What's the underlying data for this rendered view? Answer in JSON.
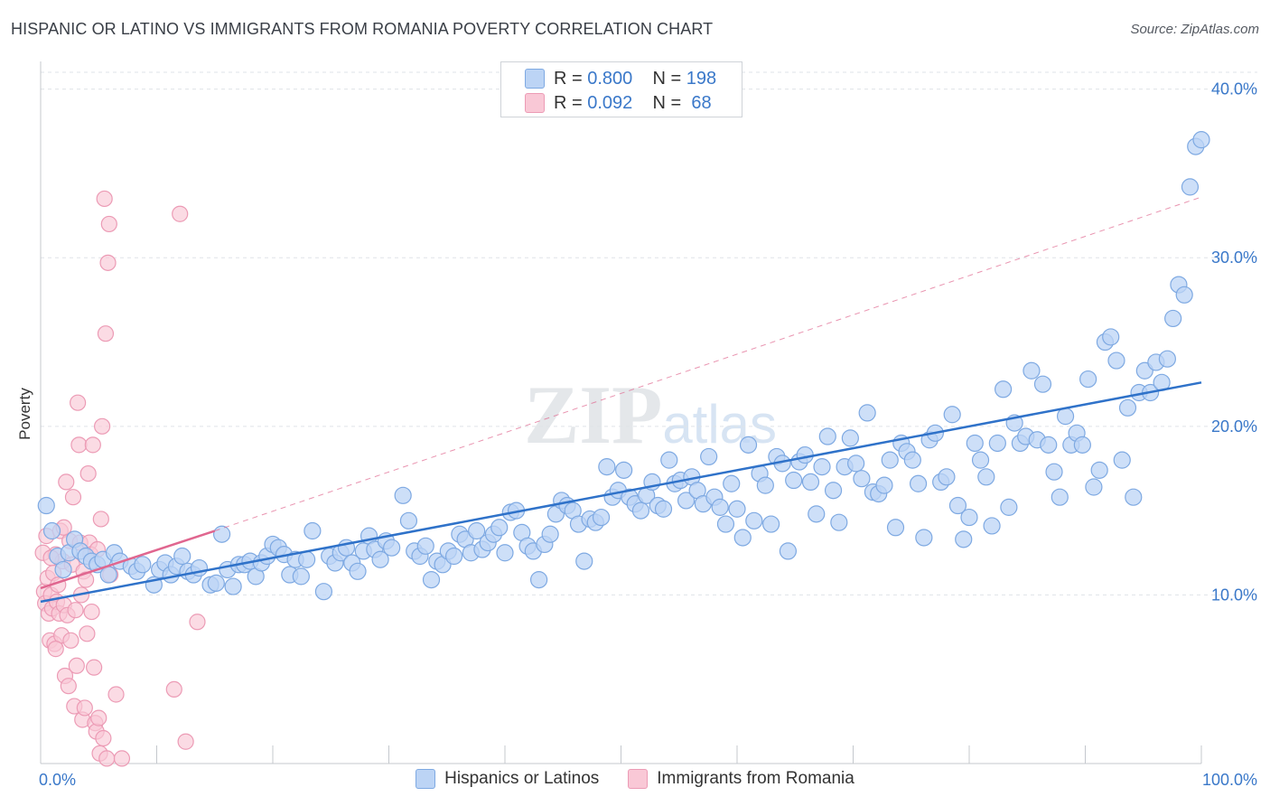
{
  "title": "HISPANIC OR LATINO VS IMMIGRANTS FROM ROMANIA POVERTY CORRELATION CHART",
  "source": "Source: ZipAtlas.com",
  "watermark": "ZIPatlas",
  "legend_box": {
    "rows": [
      {
        "r_label": "R =",
        "r_value": "0.800",
        "n_label": "N =",
        "n_value": "198"
      },
      {
        "r_label": "R =",
        "r_value": "0.092",
        "n_label": "N =",
        "n_value": "68"
      }
    ]
  },
  "colors": {
    "blue_fill": "#bcd4f5",
    "blue_stroke": "#7ea9e2",
    "blue_line": "#2f72c9",
    "pink_fill": "#f9c8d6",
    "pink_stroke": "#ec9bb5",
    "pink_line": "#e0668f",
    "tick_label": "#3a78c9",
    "grid": "#dfe3e8"
  },
  "chart_data": {
    "type": "scatter",
    "title": "HISPANIC OR LATINO VS IMMIGRANTS FROM ROMANIA POVERTY CORRELATION CHART",
    "xlabel": "",
    "ylabel": "Poverty",
    "xlim": [
      0,
      100
    ],
    "ylim": [
      0,
      41
    ],
    "x_tick_labels": [
      "0.0%",
      "100.0%"
    ],
    "y_ticks": [
      10,
      20,
      30,
      40
    ],
    "y_tick_labels": [
      "10.0%",
      "20.0%",
      "30.0%",
      "40.0%"
    ],
    "grid": true,
    "legend_position": "bottom-center",
    "series": [
      {
        "name": "Hispanics or Latinos",
        "color": "blue",
        "trend": {
          "x": [
            0,
            100
          ],
          "y": [
            9.6,
            22.6
          ]
        },
        "points": [
          [
            0.5,
            15.3
          ],
          [
            1,
            13.8
          ],
          [
            1.5,
            12.3
          ],
          [
            2,
            11.5
          ],
          [
            2.5,
            12.5
          ],
          [
            3,
            13.3
          ],
          [
            3.5,
            12.6
          ],
          [
            4,
            12.3
          ],
          [
            4.5,
            12.0
          ],
          [
            5,
            11.8
          ],
          [
            5.5,
            12.1
          ],
          [
            6,
            11.2
          ],
          [
            6.5,
            12.5
          ],
          [
            7,
            12.0
          ],
          [
            8,
            11.7
          ],
          [
            8.5,
            11.4
          ],
          [
            9,
            11.8
          ],
          [
            10,
            10.6
          ],
          [
            10.5,
            11.5
          ],
          [
            11,
            11.9
          ],
          [
            11.5,
            11.2
          ],
          [
            12,
            11.7
          ],
          [
            12.5,
            12.3
          ],
          [
            13,
            11.4
          ],
          [
            13.5,
            11.2
          ],
          [
            14,
            11.6
          ],
          [
            15,
            10.6
          ],
          [
            15.5,
            10.7
          ],
          [
            16,
            13.6
          ],
          [
            16.5,
            11.5
          ],
          [
            17,
            10.5
          ],
          [
            17.5,
            11.8
          ],
          [
            18,
            11.8
          ],
          [
            18.5,
            12.0
          ],
          [
            19,
            11.1
          ],
          [
            19.5,
            11.9
          ],
          [
            20,
            12.3
          ],
          [
            20.5,
            13.0
          ],
          [
            21,
            12.8
          ],
          [
            21.5,
            12.4
          ],
          [
            22,
            11.2
          ],
          [
            22.5,
            12.1
          ],
          [
            23,
            11.1
          ],
          [
            23.5,
            12.1
          ],
          [
            24,
            13.8
          ],
          [
            25,
            10.2
          ],
          [
            25.5,
            12.3
          ],
          [
            26,
            11.9
          ],
          [
            26.5,
            12.5
          ],
          [
            27,
            12.8
          ],
          [
            27.5,
            11.9
          ],
          [
            28,
            11.4
          ],
          [
            28.5,
            12.6
          ],
          [
            29,
            13.5
          ],
          [
            29.5,
            12.7
          ],
          [
            30,
            12.1
          ],
          [
            30.5,
            13.2
          ],
          [
            31,
            12.8
          ],
          [
            32,
            15.9
          ],
          [
            32.5,
            14.4
          ],
          [
            33,
            12.6
          ],
          [
            33.5,
            12.3
          ],
          [
            34,
            12.9
          ],
          [
            34.5,
            10.9
          ],
          [
            35,
            12.0
          ],
          [
            35.5,
            11.8
          ],
          [
            36,
            12.6
          ],
          [
            36.5,
            12.3
          ],
          [
            37,
            13.6
          ],
          [
            37.5,
            13.3
          ],
          [
            38,
            12.5
          ],
          [
            38.5,
            13.8
          ],
          [
            39,
            12.7
          ],
          [
            39.5,
            13.1
          ],
          [
            40,
            13.6
          ],
          [
            40.5,
            14.0
          ],
          [
            41,
            12.5
          ],
          [
            41.5,
            14.9
          ],
          [
            42,
            15.0
          ],
          [
            42.5,
            13.7
          ],
          [
            43,
            12.9
          ],
          [
            43.5,
            12.6
          ],
          [
            44,
            10.9
          ],
          [
            44.5,
            13.0
          ],
          [
            45,
            13.6
          ],
          [
            45.5,
            14.8
          ],
          [
            46,
            15.6
          ],
          [
            46.5,
            15.3
          ],
          [
            47,
            15.0
          ],
          [
            47.5,
            14.2
          ],
          [
            48,
            12.0
          ],
          [
            48.5,
            14.5
          ],
          [
            49,
            14.3
          ],
          [
            49.5,
            14.6
          ],
          [
            50,
            17.6
          ],
          [
            50.5,
            15.8
          ],
          [
            51,
            16.2
          ],
          [
            51.5,
            17.4
          ],
          [
            52,
            15.8
          ],
          [
            52.5,
            15.4
          ],
          [
            53,
            15.0
          ],
          [
            53.5,
            15.9
          ],
          [
            54,
            16.7
          ],
          [
            54.5,
            15.3
          ],
          [
            55,
            15.1
          ],
          [
            55.5,
            18.0
          ],
          [
            56,
            16.6
          ],
          [
            56.5,
            16.8
          ],
          [
            57,
            15.6
          ],
          [
            57.5,
            17.0
          ],
          [
            58,
            16.2
          ],
          [
            58.5,
            15.4
          ],
          [
            59,
            18.2
          ],
          [
            59.5,
            15.8
          ],
          [
            60,
            15.2
          ],
          [
            60.5,
            14.2
          ],
          [
            61,
            16.6
          ],
          [
            61.5,
            15.1
          ],
          [
            62,
            13.4
          ],
          [
            62.5,
            18.9
          ],
          [
            63,
            14.4
          ],
          [
            63.5,
            17.2
          ],
          [
            64,
            16.5
          ],
          [
            64.5,
            14.2
          ],
          [
            65,
            18.2
          ],
          [
            65.5,
            17.8
          ],
          [
            66,
            12.6
          ],
          [
            66.5,
            16.8
          ],
          [
            67,
            17.9
          ],
          [
            67.5,
            18.3
          ],
          [
            68,
            16.7
          ],
          [
            68.5,
            14.8
          ],
          [
            69,
            17.6
          ],
          [
            69.5,
            19.4
          ],
          [
            70,
            16.2
          ],
          [
            70.5,
            14.3
          ],
          [
            71,
            17.6
          ],
          [
            71.5,
            19.3
          ],
          [
            72,
            17.8
          ],
          [
            72.5,
            16.9
          ],
          [
            73,
            20.8
          ],
          [
            73.5,
            16.1
          ],
          [
            74,
            16.0
          ],
          [
            74.5,
            16.5
          ],
          [
            75,
            18.0
          ],
          [
            75.5,
            14.0
          ],
          [
            76,
            19.0
          ],
          [
            76.5,
            18.5
          ],
          [
            77,
            18.0
          ],
          [
            77.5,
            16.6
          ],
          [
            78,
            13.4
          ],
          [
            78.5,
            19.2
          ],
          [
            79,
            19.6
          ],
          [
            79.5,
            16.7
          ],
          [
            80,
            17.0
          ],
          [
            80.5,
            20.7
          ],
          [
            81,
            15.3
          ],
          [
            81.5,
            13.3
          ],
          [
            82,
            14.6
          ],
          [
            82.5,
            19.0
          ],
          [
            83,
            18.0
          ],
          [
            83.5,
            17.0
          ],
          [
            84,
            14.1
          ],
          [
            84.5,
            19.0
          ],
          [
            85,
            22.2
          ],
          [
            85.5,
            15.2
          ],
          [
            86,
            20.2
          ],
          [
            86.5,
            19.0
          ],
          [
            87,
            19.4
          ],
          [
            87.5,
            23.3
          ],
          [
            88,
            19.2
          ],
          [
            88.5,
            22.5
          ],
          [
            89,
            18.9
          ],
          [
            89.5,
            17.3
          ],
          [
            90,
            15.8
          ],
          [
            90.5,
            20.6
          ],
          [
            91,
            18.9
          ],
          [
            91.5,
            19.6
          ],
          [
            92,
            18.9
          ],
          [
            92.5,
            22.8
          ],
          [
            93,
            16.4
          ],
          [
            93.5,
            17.4
          ],
          [
            94,
            25.0
          ],
          [
            94.5,
            25.3
          ],
          [
            95,
            23.9
          ],
          [
            95.5,
            18.0
          ],
          [
            96,
            21.1
          ],
          [
            96.5,
            15.8
          ],
          [
            97,
            22.0
          ],
          [
            97.5,
            23.3
          ],
          [
            98,
            22.0
          ],
          [
            98.5,
            23.8
          ],
          [
            99,
            22.6
          ],
          [
            99.5,
            24.0
          ],
          [
            100,
            26.4
          ],
          [
            100.5,
            28.4
          ],
          [
            101,
            27.8
          ],
          [
            101.5,
            34.2
          ],
          [
            102,
            36.6
          ],
          [
            102.5,
            37.0
          ]
        ]
      },
      {
        "name": "Immigrants from Romania",
        "color": "pink",
        "trend": {
          "x": [
            0,
            15
          ],
          "y": [
            10.4,
            13.8
          ]
        },
        "trend_dashed": {
          "x": [
            15,
            100
          ],
          "y": [
            13.8,
            33.6
          ]
        },
        "points": [
          [
            0.2,
            12.5
          ],
          [
            0.3,
            10.2
          ],
          [
            0.4,
            9.5
          ],
          [
            0.5,
            13.5
          ],
          [
            0.6,
            11.0
          ],
          [
            0.7,
            8.9
          ],
          [
            0.8,
            7.3
          ],
          [
            0.9,
            10.0
          ],
          [
            1.0,
            9.2
          ],
          [
            1.1,
            11.3
          ],
          [
            1.2,
            7.1
          ],
          [
            1.3,
            12.4
          ],
          [
            1.4,
            9.6
          ],
          [
            1.5,
            10.6
          ],
          [
            1.6,
            8.9
          ],
          [
            1.7,
            13.8
          ],
          [
            1.8,
            7.6
          ],
          [
            1.9,
            12.0
          ],
          [
            2.0,
            9.4
          ],
          [
            2.1,
            5.2
          ],
          [
            2.2,
            16.7
          ],
          [
            2.3,
            8.8
          ],
          [
            2.4,
            4.6
          ],
          [
            2.5,
            13.2
          ],
          [
            2.6,
            7.3
          ],
          [
            2.7,
            11.8
          ],
          [
            2.8,
            15.8
          ],
          [
            2.9,
            3.4
          ],
          [
            3.0,
            9.1
          ],
          [
            3.1,
            5.8
          ],
          [
            3.2,
            21.4
          ],
          [
            3.3,
            18.9
          ],
          [
            3.4,
            13.1
          ],
          [
            3.5,
            10.0
          ],
          [
            3.6,
            2.6
          ],
          [
            3.7,
            11.4
          ],
          [
            3.8,
            3.3
          ],
          [
            3.9,
            10.9
          ],
          [
            4.0,
            7.7
          ],
          [
            4.1,
            17.2
          ],
          [
            4.2,
            13.1
          ],
          [
            4.3,
            12.4
          ],
          [
            4.4,
            9.0
          ],
          [
            4.5,
            18.9
          ],
          [
            4.6,
            5.7
          ],
          [
            4.7,
            2.4
          ],
          [
            4.8,
            1.9
          ],
          [
            4.9,
            12.7
          ],
          [
            5.0,
            2.7
          ],
          [
            5.1,
            0.6
          ],
          [
            5.2,
            14.5
          ],
          [
            5.3,
            20.0
          ],
          [
            5.4,
            1.5
          ],
          [
            5.5,
            33.5
          ],
          [
            5.6,
            25.5
          ],
          [
            5.7,
            0.3
          ],
          [
            5.8,
            29.7
          ],
          [
            5.9,
            32.0
          ],
          [
            6.0,
            11.2
          ],
          [
            6.5,
            4.1
          ],
          [
            7.0,
            0.3
          ],
          [
            11.5,
            4.4
          ],
          [
            12.0,
            32.6
          ],
          [
            12.5,
            1.3
          ],
          [
            13.5,
            8.4
          ],
          [
            0.9,
            12.2
          ],
          [
            1.3,
            6.8
          ],
          [
            2.0,
            14.0
          ]
        ]
      }
    ]
  }
}
